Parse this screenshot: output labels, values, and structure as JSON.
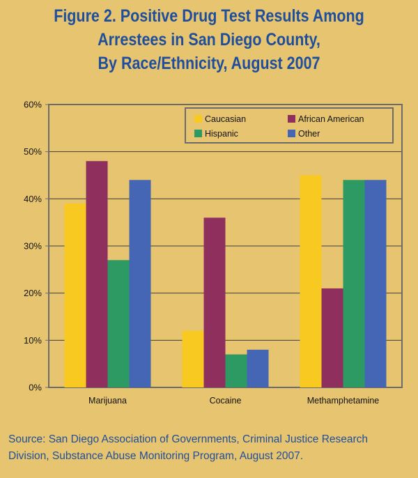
{
  "title_lines": [
    "Figure 2. Positive Drug Test Results Among",
    "Arrestees in San Diego County,",
    "By Race/Ethnicity, August 2007"
  ],
  "source_lines": [
    "Source: San Diego Association of Governments, Criminal Justice Research",
    "Division, Substance Abuse Monitoring Program, August 2007."
  ],
  "colors": {
    "background": "#e7c46f",
    "title": "#1f4e9c",
    "axis": "#6b6b6b",
    "grid": "#3c3c3c"
  },
  "chart_data": {
    "type": "bar",
    "categories": [
      "Marijuana",
      "Cocaine",
      "Methamphetamine"
    ],
    "series": [
      {
        "name": "Caucasian",
        "color": "#f7c921",
        "values": [
          39,
          12,
          45
        ]
      },
      {
        "name": "African American",
        "color": "#8e2f5d",
        "values": [
          48,
          36,
          21
        ]
      },
      {
        "name": "Hispanic",
        "color": "#2e9a63",
        "values": [
          27,
          7,
          44
        ]
      },
      {
        "name": "Other",
        "color": "#4565b5",
        "values": [
          44,
          8,
          44
        ]
      }
    ],
    "ylim": [
      0,
      60
    ],
    "yticks": [
      "0%",
      "10%",
      "20%",
      "30%",
      "40%",
      "50%",
      "60%"
    ],
    "grid": true,
    "legend_position": "top-right"
  }
}
